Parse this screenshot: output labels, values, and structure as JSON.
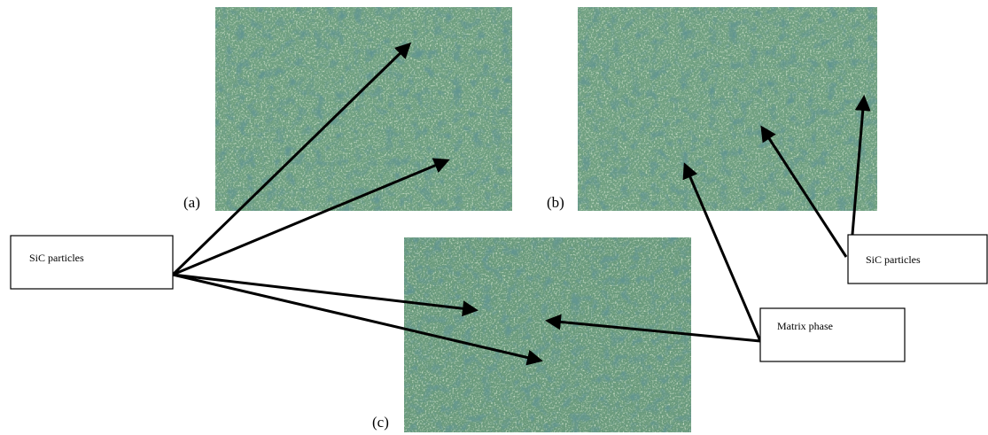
{
  "panels": [
    {
      "label": "(a)"
    },
    {
      "label": "(b)"
    },
    {
      "label": "(c)"
    }
  ],
  "callouts": [
    {
      "label": "SiC particles"
    },
    {
      "label": "SiC particles"
    },
    {
      "label": "Matrix phase"
    }
  ]
}
